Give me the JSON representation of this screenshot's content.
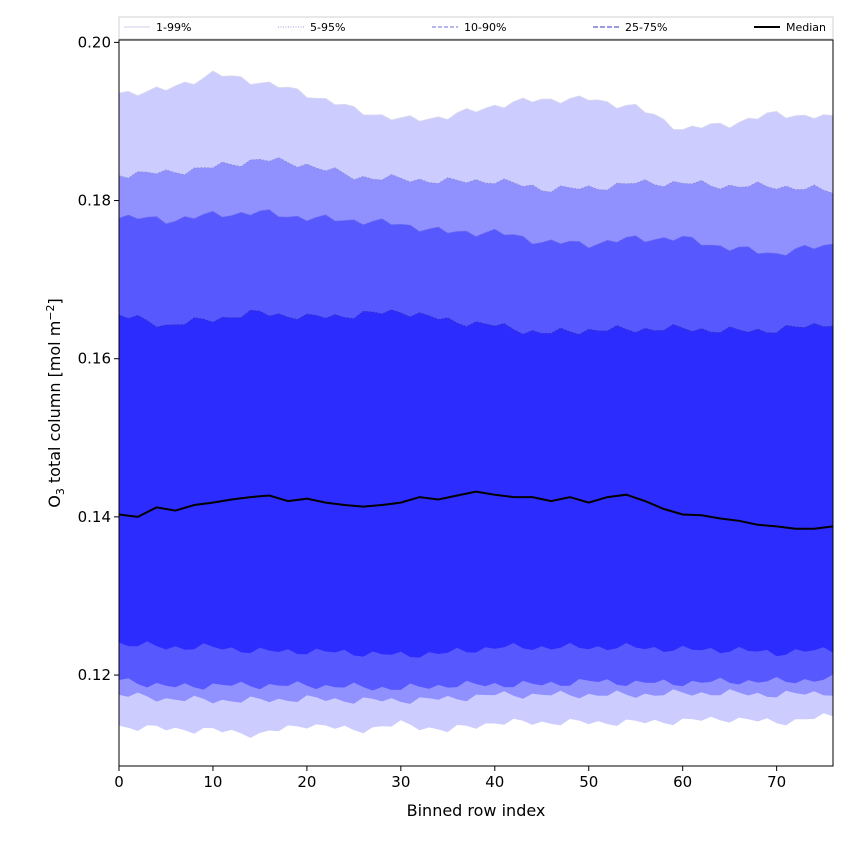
{
  "chart_data": {
    "type": "area",
    "title": "",
    "xlabel": "Binned row index",
    "ylabel_main": "O",
    "ylabel_sub": "3",
    "ylabel_rest": " total column [mol m",
    "ylabel_sup": "−2",
    "ylabel_end": "]",
    "xlim": [
      0,
      76
    ],
    "ylim": [
      0.1085,
      0.2003
    ],
    "xticks": [
      0,
      10,
      20,
      30,
      40,
      50,
      60,
      70
    ],
    "xtick_labels": [
      "0",
      "10",
      "20",
      "30",
      "40",
      "50",
      "60",
      "70"
    ],
    "yticks": [
      0.12,
      0.14,
      0.16,
      0.18,
      0.2
    ],
    "ytick_labels": [
      "0.12",
      "0.14",
      "0.16",
      "0.18",
      "0.20"
    ],
    "grid": false,
    "legend_position": "top",
    "x_knots": [
      0,
      5,
      10,
      15,
      20,
      25,
      30,
      35,
      40,
      45,
      50,
      55,
      60,
      65,
      70,
      76
    ],
    "bands": [
      {
        "name": "1-99%",
        "color": "#ccccff",
        "line_color": "#d8d8ee",
        "upper": [
          0.1936,
          0.194,
          0.196,
          0.195,
          0.1935,
          0.1915,
          0.1902,
          0.1906,
          0.192,
          0.1928,
          0.1928,
          0.1918,
          0.189,
          0.1897,
          0.191,
          0.1904
        ],
        "lower": [
          0.1135,
          0.1132,
          0.113,
          0.1125,
          0.1138,
          0.113,
          0.1138,
          0.113,
          0.114,
          0.114,
          0.114,
          0.114,
          0.1142,
          0.1145,
          0.114,
          0.1148
        ]
      },
      {
        "name": "5-95%",
        "color": "#9090ff",
        "line_color": "#8a8ad8",
        "upper": [
          0.1833,
          0.1835,
          0.1842,
          0.1852,
          0.1845,
          0.183,
          0.1827,
          0.1824,
          0.1825,
          0.1815,
          0.1815,
          0.1822,
          0.1822,
          0.1818,
          0.1818,
          0.1812
        ],
        "lower": [
          0.1175,
          0.117,
          0.1168,
          0.1168,
          0.117,
          0.1168,
          0.1168,
          0.117,
          0.1175,
          0.1175,
          0.1175,
          0.1175,
          0.1177,
          0.1177,
          0.1175,
          0.1178
        ]
      },
      {
        "name": "10-90%",
        "color": "#5858ff",
        "line_color": "#7070e8",
        "upper": [
          0.178,
          0.1775,
          0.1782,
          0.1785,
          0.1778,
          0.1775,
          0.177,
          0.176,
          0.176,
          0.1748,
          0.1745,
          0.1752,
          0.1752,
          0.174,
          0.1733,
          0.1745
        ],
        "lower": [
          0.1195,
          0.1185,
          0.1187,
          0.1187,
          0.1187,
          0.1185,
          0.1183,
          0.1187,
          0.1188,
          0.1188,
          0.1192,
          0.119,
          0.119,
          0.1192,
          0.1192,
          0.1195
        ]
      },
      {
        "name": "25-75%",
        "color": "#2c2cff",
        "line_color": "#3030c0",
        "upper": [
          0.1655,
          0.1642,
          0.165,
          0.1658,
          0.1652,
          0.1655,
          0.166,
          0.1648,
          0.1642,
          0.1632,
          0.1636,
          0.1637,
          0.1638,
          0.1635,
          0.1636,
          0.1645
        ],
        "lower": [
          0.124,
          0.1235,
          0.1235,
          0.123,
          0.123,
          0.1228,
          0.1225,
          0.1228,
          0.1235,
          0.1235,
          0.1235,
          0.1235,
          0.1232,
          0.1232,
          0.1228,
          0.1232
        ]
      }
    ],
    "median": {
      "name": "Median",
      "color": "#000000",
      "x": [
        0,
        2,
        4,
        6,
        8,
        10,
        12,
        14,
        16,
        18,
        20,
        22,
        24,
        26,
        28,
        30,
        32,
        34,
        36,
        38,
        40,
        42,
        44,
        46,
        48,
        50,
        52,
        54,
        56,
        58,
        60,
        62,
        64,
        66,
        68,
        70,
        72,
        74,
        76
      ],
      "values": [
        0.1403,
        0.14,
        0.1412,
        0.1408,
        0.1415,
        0.1418,
        0.1422,
        0.1425,
        0.1427,
        0.142,
        0.1423,
        0.1418,
        0.1415,
        0.1413,
        0.1415,
        0.1418,
        0.1425,
        0.1422,
        0.1427,
        0.1432,
        0.1428,
        0.1425,
        0.1425,
        0.142,
        0.1425,
        0.1418,
        0.1425,
        0.1428,
        0.142,
        0.141,
        0.1403,
        0.1402,
        0.1398,
        0.1395,
        0.139,
        0.1388,
        0.1385,
        0.1385,
        0.1388
      ]
    },
    "legend": {
      "entries": [
        {
          "label": "1-99%",
          "color": "#d8d8ee",
          "dash": ""
        },
        {
          "label": "5-95%",
          "color": "#b0b0e0",
          "dash": "1,1.5"
        },
        {
          "label": "10-90%",
          "color": "#8a8ae8",
          "dash": "4,2"
        },
        {
          "label": "25-75%",
          "color": "#5c5cd8",
          "dash": "5,2"
        },
        {
          "label": "Median",
          "color": "#000000",
          "dash": ""
        }
      ]
    }
  }
}
